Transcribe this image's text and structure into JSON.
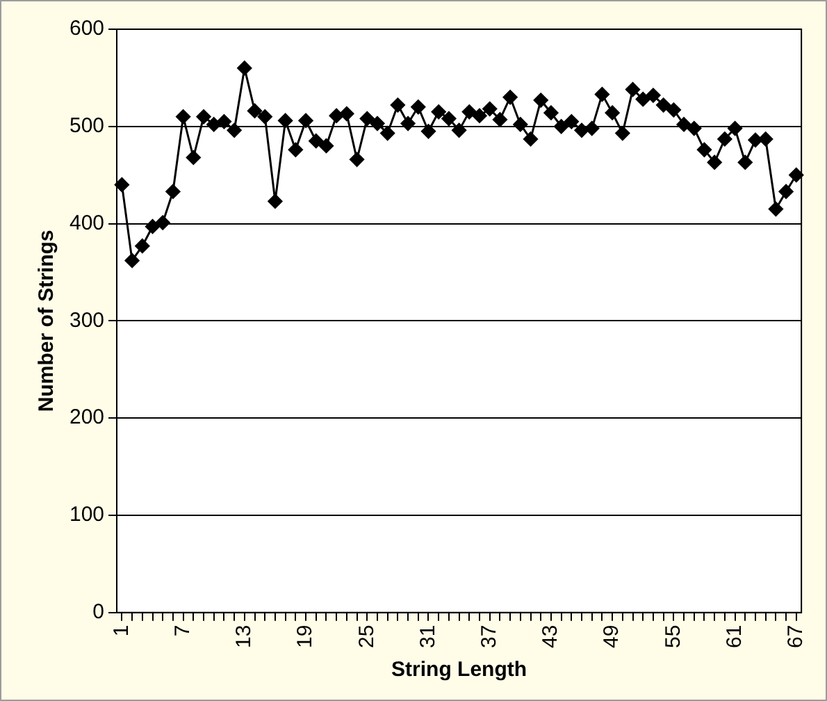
{
  "chart_data": {
    "type": "line",
    "xlabel": "String Length",
    "ylabel": "Number of Strings",
    "categories": [
      "1",
      null,
      null,
      null,
      null,
      null,
      "7",
      null,
      null,
      null,
      null,
      null,
      "13",
      null,
      null,
      null,
      null,
      null,
      "19",
      null,
      null,
      null,
      null,
      null,
      "25",
      null,
      null,
      null,
      null,
      null,
      "31",
      null,
      null,
      null,
      null,
      null,
      "37",
      null,
      null,
      null,
      null,
      null,
      "43",
      null,
      null,
      null,
      null,
      null,
      "49",
      null,
      null,
      null,
      null,
      null,
      "55",
      null,
      null,
      null,
      null,
      null,
      "61",
      null,
      null,
      null,
      null,
      null,
      "67"
    ],
    "values": [
      440,
      362,
      377,
      397,
      401,
      433,
      510,
      468,
      510,
      502,
      505,
      496,
      560,
      516,
      510,
      423,
      506,
      476,
      506,
      485,
      480,
      511,
      513,
      466,
      508,
      503,
      493,
      522,
      503,
      520,
      495,
      515,
      508,
      496,
      515,
      511,
      518,
      507,
      530,
      502,
      487,
      527,
      514,
      500,
      505,
      496,
      498,
      533,
      514,
      493,
      538,
      528,
      532,
      522,
      517,
      502,
      498,
      476,
      463,
      487,
      498,
      463,
      486,
      487,
      415,
      433,
      450
    ],
    "color": "#000000",
    "ylim": [
      0,
      600
    ],
    "yticks": [
      0,
      100,
      200,
      300,
      400,
      500,
      600
    ],
    "grid": "y",
    "legend": false,
    "marker": "diamond",
    "line_style": "solid"
  }
}
